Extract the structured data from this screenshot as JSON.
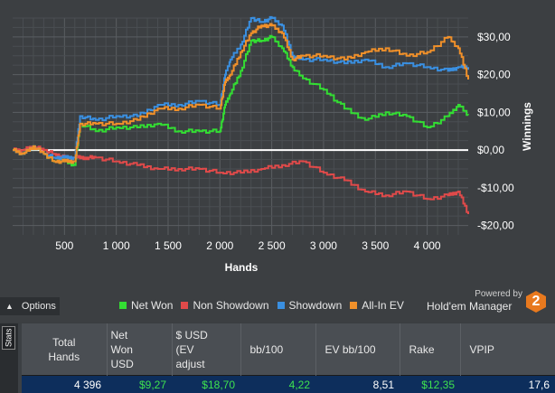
{
  "chart_data": {
    "type": "line",
    "xlabel": "Hands",
    "ylabel": "Winnings",
    "xlim": [
      0,
      4396
    ],
    "ylim": [
      -22.5,
      35
    ],
    "x_ticks": [
      500,
      1000,
      1500,
      2000,
      2500,
      3000,
      3500,
      4000
    ],
    "x_tick_labels": [
      "500",
      "1 000",
      "1 500",
      "2 000",
      "2 500",
      "3 000",
      "3 500",
      "4 000"
    ],
    "y_ticks": [
      -20,
      -10,
      0,
      10,
      20,
      30
    ],
    "y_tick_labels": [
      "-$20,00",
      "-$10,00",
      "$0,00",
      "$10,00",
      "$20,00",
      "$30,00"
    ],
    "zero_line": true,
    "grid": true,
    "series": [
      {
        "name": "Net Won",
        "color": "#33dd33",
        "x": [
          0,
          100,
          200,
          300,
          400,
          500,
          600,
          650,
          800,
          1000,
          1200,
          1400,
          1600,
          1800,
          2000,
          2050,
          2100,
          2200,
          2300,
          2400,
          2500,
          2600,
          2700,
          2800,
          3000,
          3200,
          3400,
          3600,
          3800,
          4000,
          4200,
          4300,
          4396
        ],
        "y": [
          0,
          -1,
          1,
          -1,
          -3,
          -3,
          -4,
          7,
          5,
          6,
          6,
          7,
          5,
          5,
          5,
          12,
          15,
          21,
          29,
          29,
          30,
          27,
          22,
          19,
          16,
          11,
          8,
          10,
          9,
          6,
          9,
          12,
          9.27
        ]
      },
      {
        "name": "Non Showdown",
        "color": "#e04a4a",
        "x": [
          0,
          100,
          200,
          300,
          400,
          500,
          600,
          700,
          800,
          1000,
          1200,
          1400,
          1600,
          1800,
          2000,
          2200,
          2400,
          2600,
          2800,
          3000,
          3200,
          3400,
          3600,
          3800,
          4000,
          4200,
          4300,
          4396
        ],
        "y": [
          0,
          0,
          1,
          0,
          -1,
          -2,
          -2,
          -2,
          -2,
          -3,
          -4,
          -5,
          -5,
          -5,
          -6,
          -6,
          -5,
          -4,
          -3,
          -6,
          -8,
          -11,
          -12,
          -11,
          -13,
          -12,
          -11,
          -17
        ]
      },
      {
        "name": "Showdown",
        "color": "#3a8fe0",
        "x": [
          0,
          100,
          200,
          300,
          400,
          500,
          600,
          650,
          800,
          1000,
          1200,
          1400,
          1600,
          1800,
          2000,
          2050,
          2100,
          2200,
          2300,
          2400,
          2500,
          2600,
          2700,
          2800,
          3000,
          3200,
          3400,
          3600,
          3800,
          4000,
          4200,
          4300,
          4396
        ],
        "y": [
          0,
          -1,
          1,
          -1,
          -2,
          -2,
          -2,
          9,
          8,
          9,
          9,
          12,
          12,
          13,
          12,
          20,
          24,
          28,
          35,
          34,
          35,
          33,
          25,
          24,
          24,
          23,
          24,
          22,
          23,
          22,
          21,
          22,
          22
        ]
      },
      {
        "name": "All-In EV",
        "color": "#f0902a",
        "x": [
          0,
          100,
          200,
          300,
          400,
          500,
          600,
          650,
          800,
          1000,
          1200,
          1400,
          1600,
          1800,
          2000,
          2050,
          2100,
          2200,
          2300,
          2400,
          2500,
          2600,
          2700,
          2800,
          3000,
          3200,
          3400,
          3600,
          3800,
          4000,
          4200,
          4300,
          4396
        ],
        "y": [
          0,
          -1,
          1,
          -1,
          -3,
          -3,
          -3,
          7,
          7,
          7,
          8,
          11,
          11,
          12,
          11,
          18,
          20,
          26,
          31,
          33,
          33,
          31,
          24,
          25,
          25,
          24,
          26,
          27,
          25,
          26,
          30,
          27,
          18.7
        ]
      }
    ]
  },
  "colors": {
    "net_won": "#33dd33",
    "non_showdown": "#e04a4a",
    "showdown": "#3a8fe0",
    "allin_ev": "#f0902a"
  },
  "options": {
    "label": "Options",
    "icon": "chevron-up-icon"
  },
  "legend": [
    {
      "label": "Net Won",
      "color": "#33dd33"
    },
    {
      "label": "Non Showdown",
      "color": "#e04a4a"
    },
    {
      "label": "Showdown",
      "color": "#3a8fe0"
    },
    {
      "label": "All-In EV",
      "color": "#f0902a"
    }
  ],
  "brand": {
    "powered_by": "Powered by",
    "name": "Hold'em Manager",
    "logo": "2"
  },
  "stats": {
    "tab_label": "Stats",
    "headers": [
      "Total\nHands",
      "Net\nWon\nUSD",
      "$ USD\n(EV\nadjust",
      "bb/100",
      "EV bb/100",
      "Rake",
      "VPIP"
    ],
    "row": [
      "4 396",
      "$9,27",
      "$18,70",
      "4,22",
      "8,51",
      "$12,35",
      "17,6"
    ]
  }
}
